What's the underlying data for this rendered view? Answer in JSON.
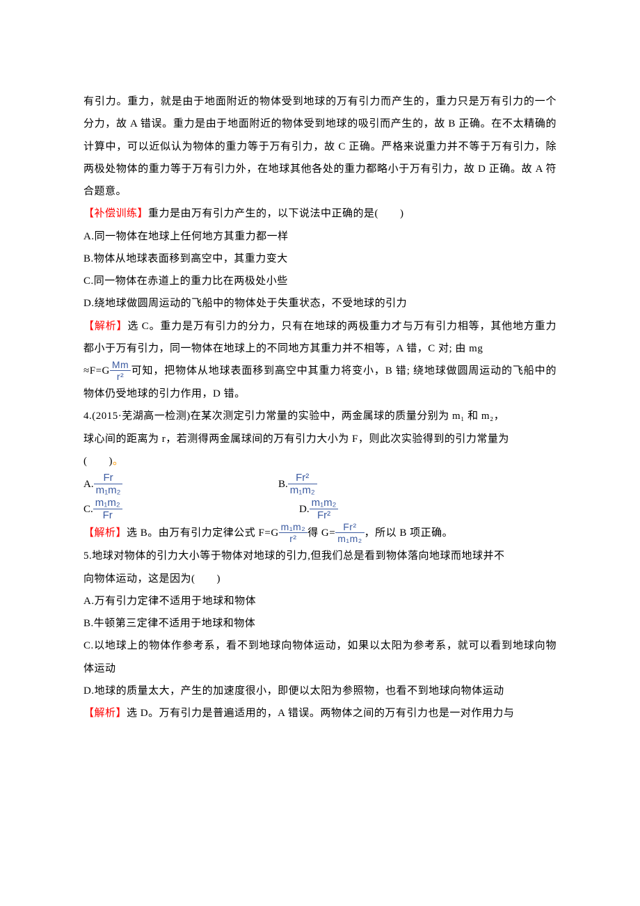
{
  "intro_para": "有引力。重力，就是由于地面附近的物体受到地球的万有引力而产生的，重力只是万有引力的一个分力，故 A 错误。重力是由于地面附近的物体受到地球的吸引而产生的，故 B 正确。在不太精确的计算中，可以近似认为物体的重力等于万有引力，故 C 正确。严格来说重力并不等于万有引力，除两极处物体的重力等于万有引力外，在地球其他各处的重力都略小于万有引力，故 D 正确。故 A 符合题意。",
  "supp": {
    "label": "【补偿训练】",
    "stem": "重力是由万有引力产生的，以下说法中正确的是(　　)",
    "A": "A.同一物体在地球上任何地方其重力都一样",
    "B": "B.物体从地球表面移到高空中，其重力变大",
    "C": "C.同一物体在赤道上的重力比在两极处小些",
    "D": "D.绕地球做圆周运动的飞船中的物体处于失重状态，不受地球的引力",
    "ans_label": "【解析】",
    "ans_pre": "选 C。重力是万有引力的分力，只有在地球的两极重力才与万有引力相等，其他地方重力都小于万有引力，同一物体在地球上的不同地方其重力并不相等，A 错，C 对; 由 mg",
    "approx": "≈F=G",
    "ans_post": "可知，把物体从地球表面移到高空中其重力将变小，B 错; 绕地球做圆周运动的飞船中的物体仍受地球的引力作用，D 错。"
  },
  "q4": {
    "stem_line1": "4.(2015·芜湖高一检测)在某次测定引力常量的实验中，两金属球的质量分别为 m₁ 和 m₂，",
    "stem_line2": "球心间的距离为 r，若测得两金属球间的万有引力大小为 F，则此次实验得到的引力常量为",
    "paren_open": "(　　)",
    "dot": "。",
    "A_prefix": "A.",
    "B_prefix": "B.",
    "C_prefix": "C.",
    "D_prefix": "D.",
    "frac_A_num": "Fr",
    "frac_A_den": "m₁m₂",
    "frac_B_num": "Fr²",
    "frac_B_den": "m₁m₂",
    "frac_C_num": "m₁m₂",
    "frac_C_den": "Fr",
    "frac_D_num": "m₁m₂",
    "frac_D_den": "Fr²",
    "ans_label": "【解析】",
    "ans_pre": "选 B。由万有引力定律公式 F=G",
    "ans_mid": "得 G=",
    "ans_post": "，所以 B 项正确。",
    "f1_num": "m₁m₂",
    "f1_den": "r²",
    "f2_num": "Fr²",
    "f2_den": "m₁m₂"
  },
  "q5": {
    "stem_line1": "5.地球对物体的引力大小等于物体对地球的引力,但我们总是看到物体落向地球而地球并不",
    "stem_line2": "向物体运动，这是因为(　　)",
    "A": "A.万有引力定律不适用于地球和物体",
    "B": "B.牛顿第三定律不适用于地球和物体",
    "C": "C.以地球上的物体作参考系，看不到地球向物体运动，如果以太阳为参考系，就可以看到地球向物体运动",
    "D": "D.地球的质量太大，产生的加速度很小，即便以太阳为参照物，也看不到地球向物体运动",
    "ans_label": "【解析】",
    "ans_text": "选 D。万有引力是普遍适用的，A 错误。两物体之间的万有引力也是一对作用力与"
  }
}
